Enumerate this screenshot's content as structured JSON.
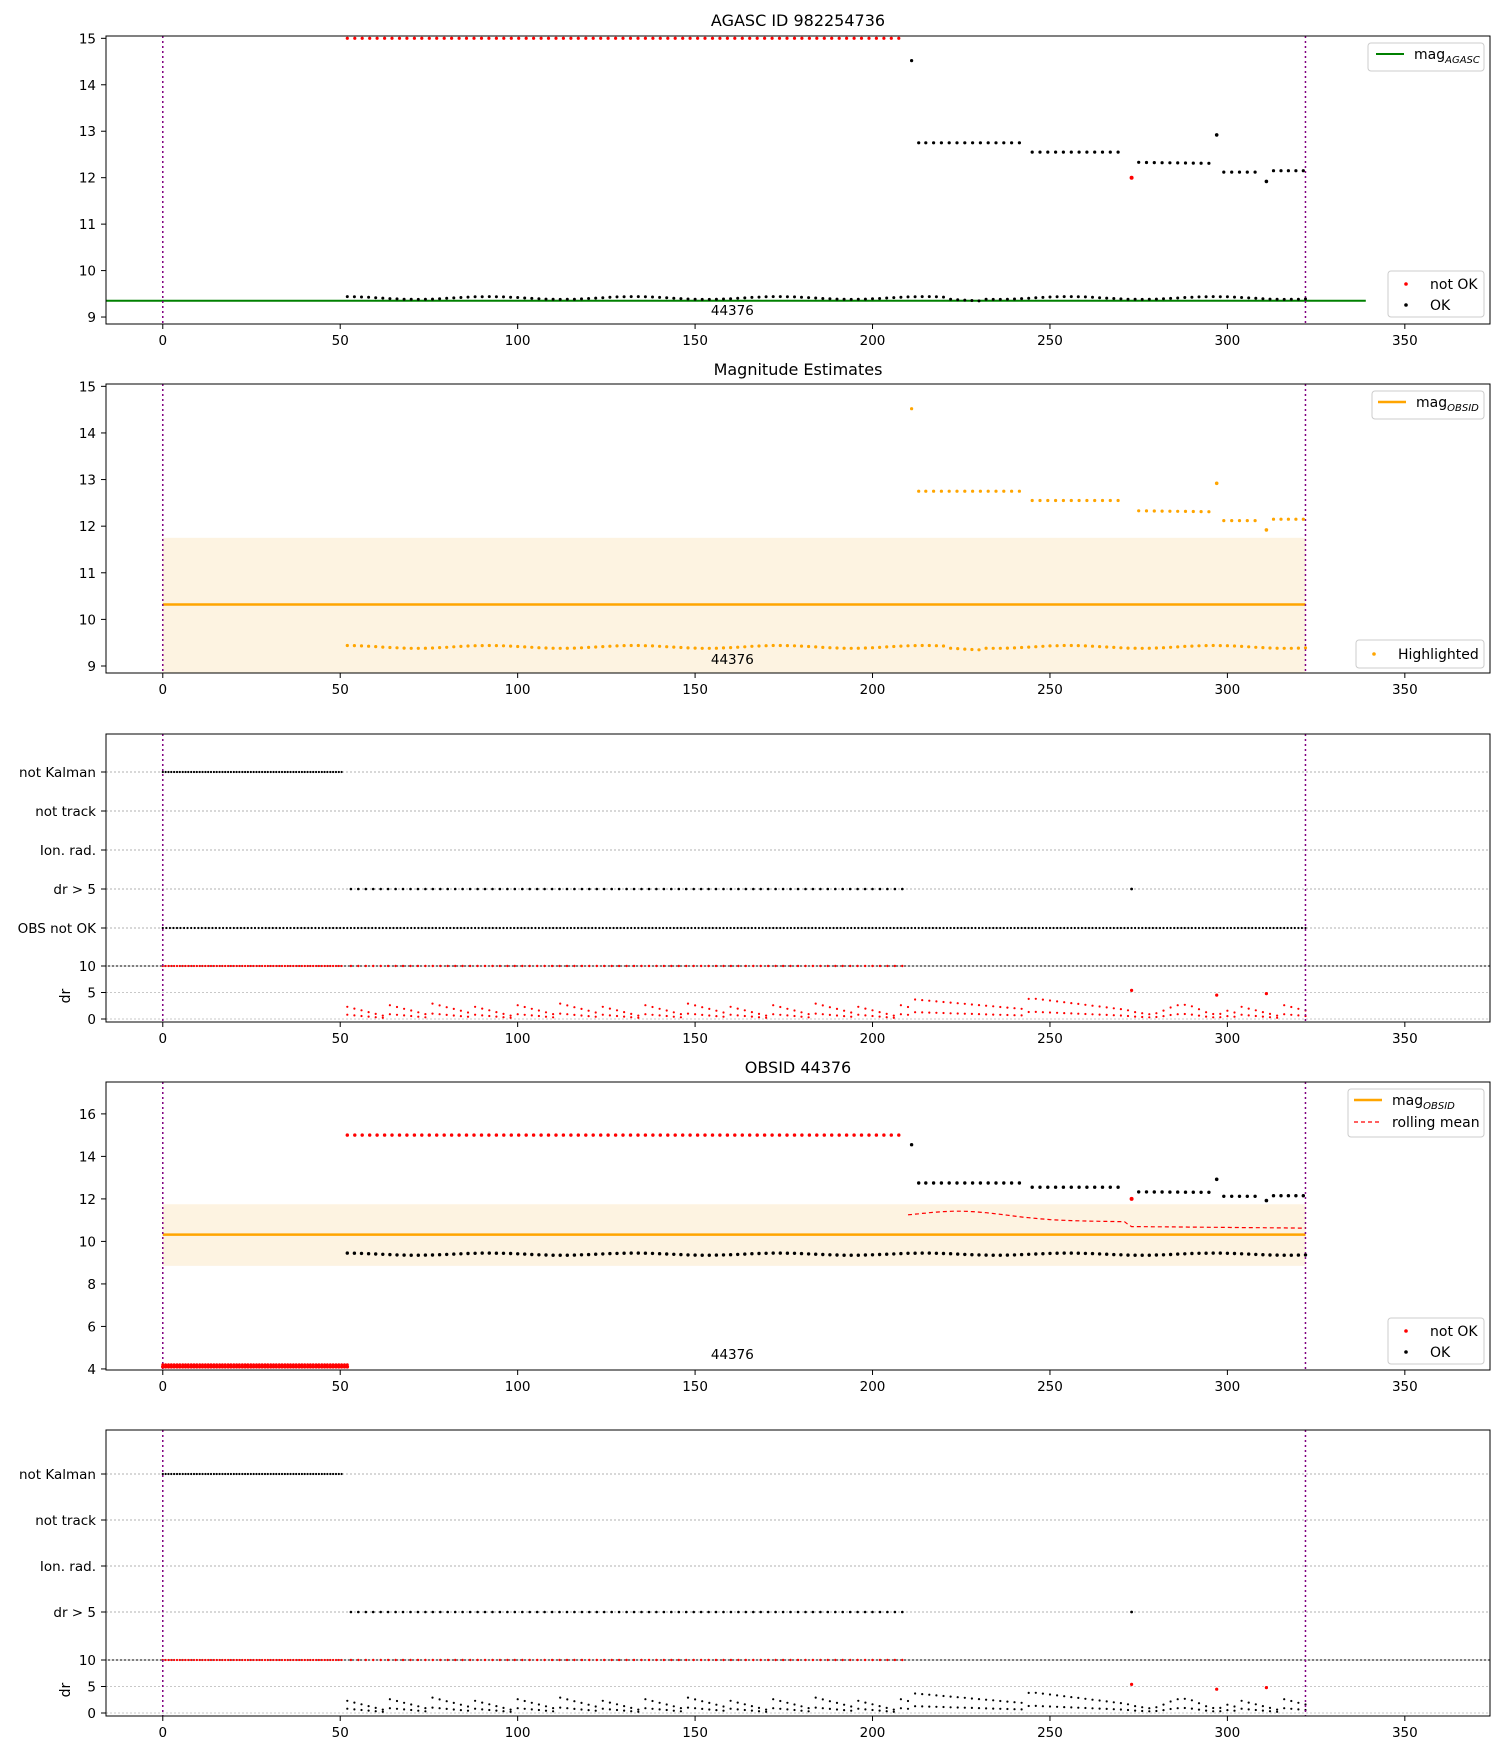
{
  "chart_data": [
    {
      "type": "scatter",
      "title": "AGASC ID 982254736",
      "xlim": [
        -16,
        374
      ],
      "ylim": [
        8.85,
        15.05
      ],
      "xticks": [
        "0",
        "50",
        "100",
        "150",
        "200",
        "250",
        "300",
        "350"
      ],
      "yticks": [
        "9",
        "10",
        "11",
        "12",
        "13",
        "14",
        "15"
      ],
      "obsid_label": "44376",
      "vlines": [
        0,
        322
      ],
      "hline": {
        "name": "mag",
        "sub": "AGASC",
        "value": 9.35,
        "color": "#008000",
        "xrange": [
          -16,
          339
        ]
      },
      "series": [
        {
          "name": "not OK",
          "color": "#ff0000"
        },
        {
          "name": "OK",
          "color": "#000000"
        }
      ],
      "legend": {
        "upper": "upper right",
        "lower": "lower right"
      }
    },
    {
      "type": "scatter",
      "title": "Magnitude Estimates",
      "xlim": [
        -16,
        374
      ],
      "ylim": [
        8.85,
        15.05
      ],
      "xticks": [
        "0",
        "50",
        "100",
        "150",
        "200",
        "250",
        "300",
        "350"
      ],
      "yticks": [
        "9",
        "10",
        "11",
        "12",
        "13",
        "14",
        "15"
      ],
      "obsid_label": "44376",
      "vlines": [
        0,
        322
      ],
      "hline": {
        "name": "mag",
        "sub": "OBSID",
        "value": 10.32,
        "color": "#ffa500",
        "band": [
          8.85,
          11.75
        ]
      },
      "series": [
        {
          "name": "Highlighted",
          "color": "#ffa500"
        }
      ],
      "legend": {
        "upper": "upper right",
        "lower": "lower right"
      }
    },
    {
      "type": "scatter",
      "title": "",
      "xlim": [
        -16,
        374
      ],
      "xticks": [
        "0",
        "50",
        "100",
        "150",
        "200",
        "250",
        "300",
        "350"
      ],
      "flag_labels": [
        "not Kalman",
        "not track",
        "Ion. rad.",
        "dr > 5",
        "OBS not OK"
      ],
      "dr_yticks": [
        "0",
        "5",
        "10"
      ],
      "dr_ylabel": "dr",
      "vlines": [
        0,
        322
      ]
    },
    {
      "type": "scatter",
      "title": "OBSID 44376",
      "xlim": [
        -16,
        374
      ],
      "ylim": [
        3.95,
        17.5
      ],
      "xticks": [
        "0",
        "50",
        "100",
        "150",
        "200",
        "250",
        "300",
        "350"
      ],
      "yticks": [
        "4",
        "6",
        "8",
        "10",
        "12",
        "14",
        "16"
      ],
      "obsid_label": "44376",
      "vlines": [
        0,
        322
      ],
      "hline": {
        "name": "mag",
        "sub": "OBSID",
        "value": 10.32,
        "color": "#ffa500",
        "band": [
          8.85,
          11.75
        ]
      },
      "series": [
        {
          "name": "not OK",
          "color": "#ff0000"
        },
        {
          "name": "OK",
          "color": "#000000"
        },
        {
          "name": "rolling mean",
          "color": "#ff0000"
        }
      ],
      "legend": {
        "upper": "upper right",
        "lower": "lower right"
      }
    },
    {
      "type": "scatter",
      "title": "",
      "xlim": [
        -16,
        374
      ],
      "xticks": [
        "0",
        "50",
        "100",
        "150",
        "200",
        "250",
        "300",
        "350"
      ],
      "flag_labels": [
        "not Kalman",
        "not track",
        "Ion. rad.",
        "dr > 5"
      ],
      "dr_yticks": [
        "0",
        "5",
        "10"
      ],
      "dr_ylabel": "dr",
      "vlines": [
        0,
        322
      ]
    }
  ]
}
